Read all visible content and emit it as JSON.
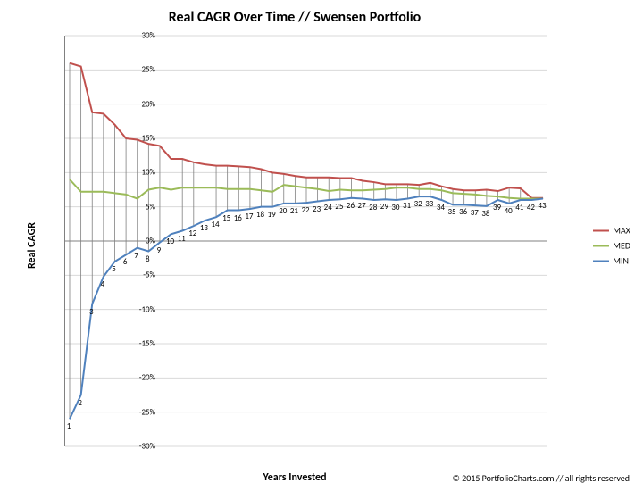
{
  "title": "Real CAGR Over Time // Swensen Portfolio",
  "title_fontsize": 16,
  "ylabel": "Real CAGR",
  "xlabel": "Years Invested",
  "attribution": "© 2015 PortfolioCharts.com // all rights reserved",
  "attribution_fontsize": 10,
  "label_fontsize": 12,
  "tick_fontsize": 9,
  "background_color": "#ffffff",
  "axis_color": "#808080",
  "grid_color": "#d9d9d9",
  "droplines_color": "#808080",
  "ylim": [
    -30,
    30
  ],
  "ytick_step": 5,
  "xlim": [
    1,
    43
  ],
  "xtick_step": 1,
  "legend": {
    "fontsize": 10,
    "items": [
      {
        "label": "MAX",
        "color": "#c0504d"
      },
      {
        "label": "MED",
        "color": "#9bbb59"
      },
      {
        "label": "MIN",
        "color": "#4f81bd"
      }
    ]
  },
  "series": {
    "x": [
      1,
      2,
      3,
      4,
      5,
      6,
      7,
      8,
      9,
      10,
      11,
      12,
      13,
      14,
      15,
      16,
      17,
      18,
      19,
      20,
      21,
      22,
      23,
      24,
      25,
      26,
      27,
      28,
      29,
      30,
      31,
      32,
      33,
      34,
      35,
      36,
      37,
      38,
      39,
      40,
      41,
      42,
      43
    ],
    "max": {
      "color": "#c0504d",
      "width": 2,
      "values": [
        26.0,
        25.5,
        18.8,
        18.6,
        17.0,
        15.0,
        14.8,
        14.2,
        13.9,
        12.0,
        12.0,
        11.5,
        11.2,
        11.0,
        11.0,
        10.9,
        10.8,
        10.5,
        10.0,
        9.8,
        9.5,
        9.3,
        9.3,
        9.3,
        9.2,
        9.2,
        8.8,
        8.6,
        8.3,
        8.3,
        8.3,
        8.2,
        8.5,
        8.0,
        7.6,
        7.4,
        7.4,
        7.5,
        7.3,
        7.8,
        7.7,
        6.3,
        6.3
      ]
    },
    "med": {
      "color": "#9bbb59",
      "width": 2,
      "values": [
        9.0,
        7.2,
        7.2,
        7.2,
        7.0,
        6.8,
        6.2,
        7.5,
        7.8,
        7.5,
        7.8,
        7.8,
        7.8,
        7.8,
        7.6,
        7.6,
        7.6,
        7.4,
        7.2,
        8.2,
        8.0,
        7.8,
        7.6,
        7.3,
        7.5,
        7.4,
        7.4,
        7.5,
        7.6,
        7.8,
        7.8,
        7.6,
        7.6,
        7.4,
        7.0,
        6.9,
        6.8,
        6.6,
        6.5,
        6.3,
        6.2,
        6.2,
        6.2
      ]
    },
    "min": {
      "color": "#4f81bd",
      "width": 2,
      "values": [
        -26.0,
        -22.5,
        -9.2,
        -5.2,
        -3.0,
        -2.0,
        -1.0,
        -1.5,
        -0.2,
        1.0,
        1.5,
        2.2,
        3.0,
        3.5,
        4.5,
        4.5,
        4.7,
        5.0,
        5.0,
        5.5,
        5.5,
        5.6,
        5.8,
        6.0,
        6.1,
        6.3,
        6.2,
        6.0,
        6.1,
        6.0,
        6.2,
        6.5,
        6.5,
        6.0,
        5.3,
        5.3,
        5.2,
        5.1,
        6.0,
        5.5,
        6.0,
        6.0,
        6.2
      ]
    }
  }
}
